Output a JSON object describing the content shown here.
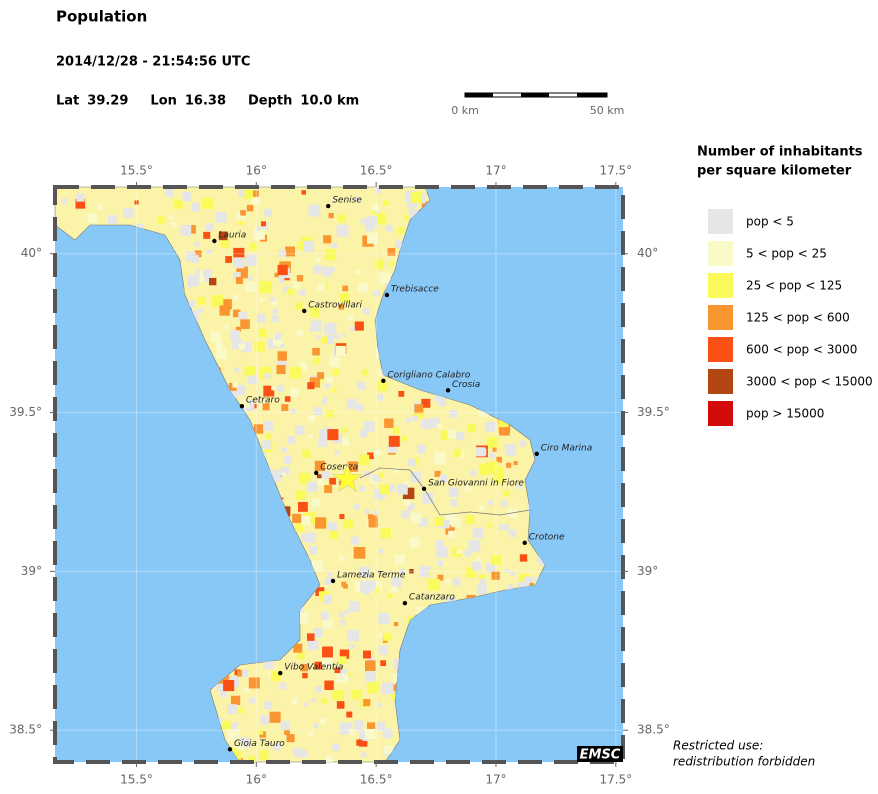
{
  "header": {
    "title": "Population",
    "datetime": "2014/12/28 - 21:54:56 UTC",
    "coords": [
      {
        "label": "Lat",
        "value": 39.29
      },
      {
        "label": "Lon",
        "value": 16.38
      },
      {
        "label": "Depth",
        "value": "10.0 km"
      }
    ]
  },
  "scale_bar": {
    "labels": [
      "0 km",
      "50 km"
    ]
  },
  "map": {
    "xlim": [
      15.16,
      17.53
    ],
    "ylim": [
      38.4,
      40.21
    ],
    "xticks": [
      {
        "value": 15.5,
        "label": "15.5°"
      },
      {
        "value": 16,
        "label": "16°"
      },
      {
        "value": 16.5,
        "label": "16.5°"
      },
      {
        "value": 17,
        "label": "17°"
      },
      {
        "value": 17.5,
        "label": "17.5°"
      }
    ],
    "yticks": [
      {
        "value": 38.5,
        "label": "38.5°"
      },
      {
        "value": 39,
        "label": "39°"
      },
      {
        "value": 39.5,
        "label": "39.5°"
      },
      {
        "value": 40,
        "label": "40°"
      }
    ],
    "epicenter": {
      "lon": 16.38,
      "lat": 39.29
    },
    "cities": [
      {
        "name": "Senise",
        "lon": 16.3,
        "lat": 40.15
      },
      {
        "name": "Lauria",
        "lon": 15.825,
        "lat": 40.04
      },
      {
        "name": "Trebisacce",
        "lon": 16.545,
        "lat": 39.87
      },
      {
        "name": "Castrovillari",
        "lon": 16.2,
        "lat": 39.82
      },
      {
        "name": "Corigliano Calabro",
        "lon": 16.53,
        "lat": 39.6
      },
      {
        "name": "Crosia",
        "lon": 16.8,
        "lat": 39.57
      },
      {
        "name": "Cetraro",
        "lon": 15.94,
        "lat": 39.52
      },
      {
        "name": "Ciro Marina",
        "lon": 17.17,
        "lat": 39.37
      },
      {
        "name": "Cosenza",
        "lon": 16.25,
        "lat": 39.31
      },
      {
        "name": "San Giovanni in Fiore",
        "lon": 16.7,
        "lat": 39.26
      },
      {
        "name": "Crotone",
        "lon": 17.12,
        "lat": 39.09
      },
      {
        "name": "Lamezia Terme",
        "lon": 16.32,
        "lat": 38.97
      },
      {
        "name": "Catanzaro",
        "lon": 16.62,
        "lat": 38.9
      },
      {
        "name": "Vibo Valentia",
        "lon": 16.1,
        "lat": 38.68
      },
      {
        "name": "Gioia Tauro",
        "lon": 15.89,
        "lat": 38.44
      }
    ]
  },
  "legend": {
    "title_lines": [
      "Number of inhabitants",
      "per square kilometer"
    ],
    "entries": [
      {
        "label": "pop < 5",
        "color": "#e6e6e6"
      },
      {
        "label": "5 < pop < 25",
        "color": "#fafac8"
      },
      {
        "label": "25 < pop < 125",
        "color": "#fafa5a"
      },
      {
        "label": "125 < pop < 600",
        "color": "#fa9632"
      },
      {
        "label": "600 < pop < 3000",
        "color": "#fa5014"
      },
      {
        "label": "3000 < pop < 15000",
        "color": "#b44614"
      },
      {
        "label": "pop > 15000",
        "color": "#d20a0a"
      }
    ]
  },
  "footer": {
    "notice": [
      "Restricted use:",
      "redistribution forbidden"
    ],
    "logo": "EMSC"
  }
}
